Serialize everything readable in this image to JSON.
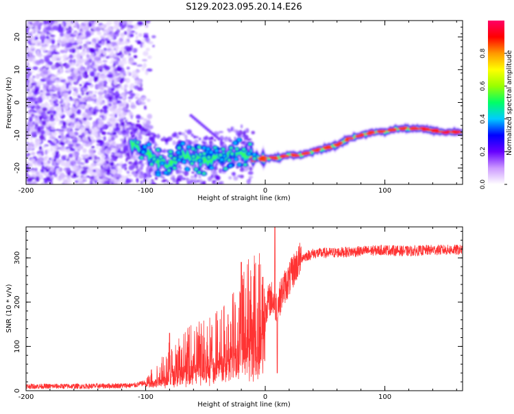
{
  "title": "S129.2023.095.20.14.E26",
  "chart_data": [
    {
      "type": "heatmap",
      "xlabel": "Height of straight line (km)",
      "ylabel": "Frequency (Hz)",
      "xlim": [
        -200,
        165
      ],
      "ylim": [
        -25,
        25
      ],
      "xticks": [
        -200,
        -100,
        0,
        100
      ],
      "yticks": [
        -20,
        -10,
        0,
        10,
        20
      ],
      "colorbar": {
        "label": "Normalized spectral amplitude",
        "range": [
          0,
          1
        ],
        "ticks": [
          "0.0",
          "0.2",
          "0.4",
          "0.6",
          "0.8"
        ],
        "colors": [
          "#ffffff",
          "#cc99ff",
          "#6600ff",
          "#0000ff",
          "#00ccff",
          "#00ff66",
          "#99ff00",
          "#ffff00",
          "#ff9900",
          "#ff0000",
          "#ff0066"
        ]
      },
      "ridge": {
        "x": [
          -110,
          -100,
          -90,
          -80,
          -70,
          -60,
          -50,
          -40,
          -30,
          -20,
          -10,
          0,
          10,
          20,
          30,
          40,
          50,
          60,
          70,
          80,
          90,
          100,
          110,
          120,
          130,
          140,
          150,
          165
        ],
        "freq": [
          -13,
          -15,
          -18,
          -19,
          -16,
          -17,
          -18,
          -17,
          -16,
          -15,
          -17,
          -17,
          -17,
          -16,
          -16,
          -15,
          -14,
          -13,
          -11,
          -10,
          -9,
          -9,
          -8,
          -8,
          -8,
          -8.5,
          -9,
          -9
        ]
      }
    },
    {
      "type": "line",
      "xlabel": "Height of straight line (km)",
      "ylabel": "SNR (10 * v/v)",
      "xlim": [
        -200,
        165
      ],
      "ylim": [
        0,
        370
      ],
      "xticks": [
        -200,
        -100,
        0,
        100
      ],
      "yticks": [
        0,
        100,
        200,
        300
      ],
      "color": "#ff3333",
      "profile": {
        "x": [
          -200,
          -150,
          -110,
          -100,
          -90,
          -80,
          -70,
          -60,
          -50,
          -40,
          -30,
          -20,
          -15,
          -10,
          -5,
          0,
          5,
          10,
          15,
          20,
          25,
          30,
          40,
          60,
          80,
          100,
          120,
          140,
          165
        ],
        "y": [
          10,
          10,
          12,
          18,
          35,
          60,
          70,
          80,
          90,
          95,
          110,
          140,
          165,
          170,
          175,
          190,
          210,
          190,
          230,
          250,
          280,
          300,
          310,
          312,
          315,
          318,
          315,
          318,
          318
        ]
      },
      "peaks": [
        {
          "x": -80,
          "y": 130
        },
        {
          "x": -20,
          "y": 290
        },
        {
          "x": 8,
          "y": 370
        },
        {
          "x": 10,
          "y": 40
        }
      ]
    }
  ]
}
